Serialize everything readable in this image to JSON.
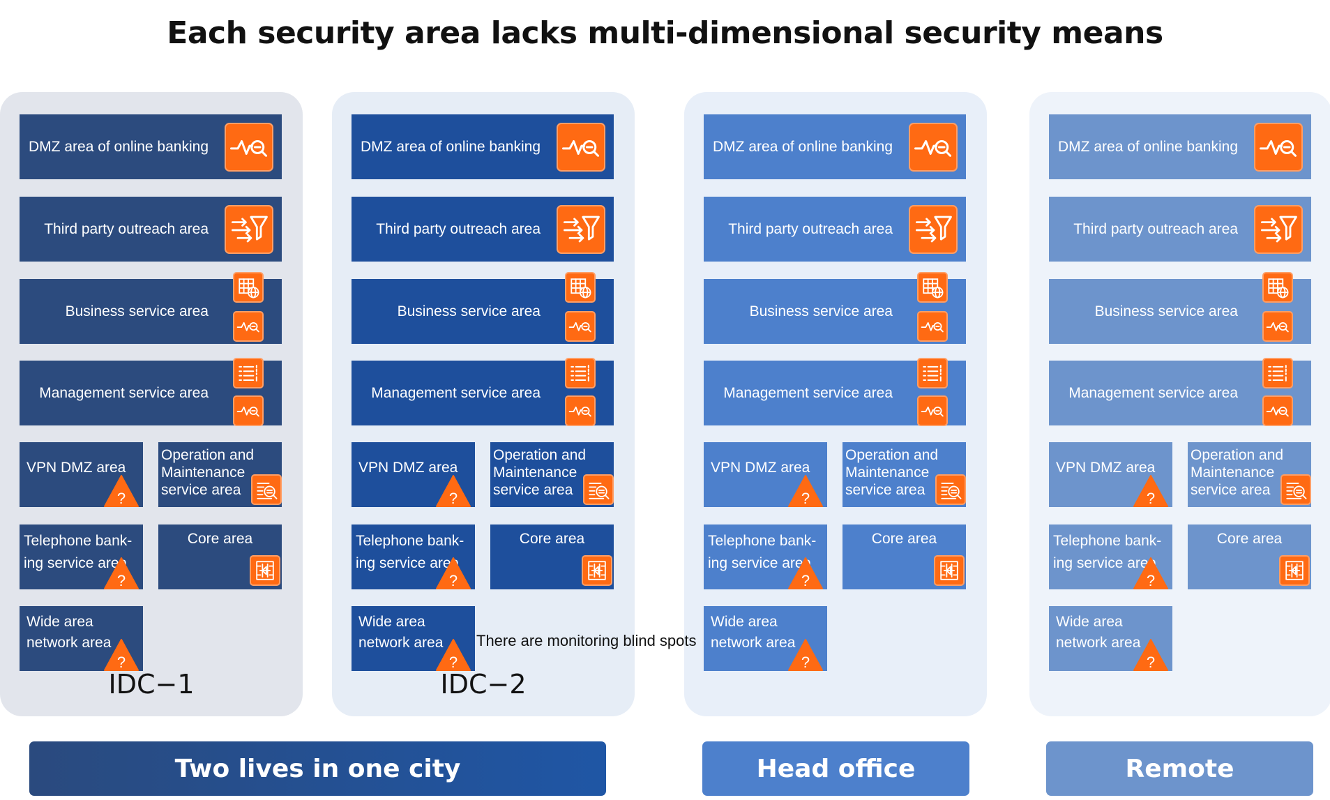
{
  "title": "Each security area lacks multi-dimensional security means",
  "colors": {
    "orange": "#ff6a13",
    "idc1_panel": "#e2e5ec",
    "idc1_box": "#2c4b7e",
    "idc2_panel": "#e6edf6",
    "idc2_box": "#1e4f9c",
    "head_panel": "#e8eff9",
    "head_box": "#4d80cc",
    "remote_panel": "#eef3fa",
    "remote_box": "#6d94cc"
  },
  "areas": {
    "dmz": "DMZ area of online banking",
    "third_party": "Third party outreach area",
    "business": "Business service area",
    "management": "Management service area",
    "vpn": "VPN DMZ area",
    "om": "Operation and Maintenance service area",
    "telephone": "Telephone bank-ing service area",
    "core": "Core area",
    "wan": "Wide area network area"
  },
  "icons": {
    "monitor": "pulse-search-icon",
    "filter": "arrows-funnel-icon",
    "grid": "grid-globe-icon",
    "list": "checklist-icon",
    "audit": "log-search-icon",
    "firewall": "firewall-icon",
    "warning": "warning-question-icon"
  },
  "panels": [
    {
      "label": "IDC−1"
    },
    {
      "label": "IDC−2"
    },
    {
      "label": ""
    },
    {
      "label": ""
    }
  ],
  "annotation": "There are monitoring blind spots",
  "bottom": {
    "two_lives": "Two lives in one city",
    "head_office": "Head office",
    "remote": "Remote"
  }
}
